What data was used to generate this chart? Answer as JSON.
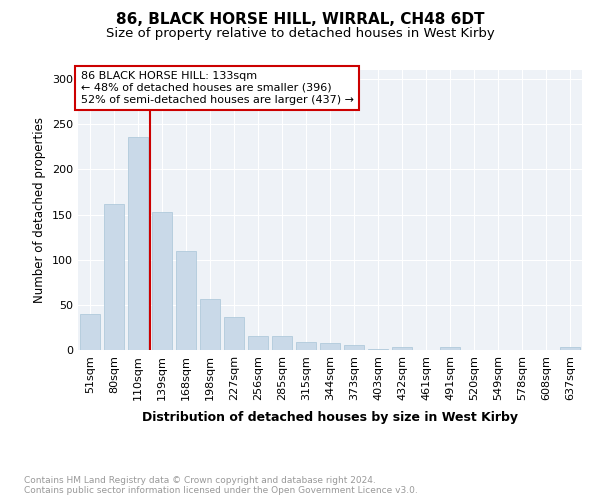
{
  "title": "86, BLACK HORSE HILL, WIRRAL, CH48 6DT",
  "subtitle": "Size of property relative to detached houses in West Kirby",
  "xlabel": "Distribution of detached houses by size in West Kirby",
  "ylabel": "Number of detached properties",
  "categories": [
    "51sqm",
    "80sqm",
    "110sqm",
    "139sqm",
    "168sqm",
    "198sqm",
    "227sqm",
    "256sqm",
    "285sqm",
    "315sqm",
    "344sqm",
    "373sqm",
    "403sqm",
    "432sqm",
    "461sqm",
    "491sqm",
    "520sqm",
    "549sqm",
    "578sqm",
    "608sqm",
    "637sqm"
  ],
  "values": [
    40,
    162,
    236,
    153,
    110,
    57,
    36,
    16,
    15,
    9,
    8,
    6,
    1,
    3,
    0,
    3,
    0,
    0,
    0,
    0,
    3
  ],
  "bar_color": "#c9d9e8",
  "bar_edge_color": "#a8c4d8",
  "vline_x": 2.5,
  "vline_color": "#cc0000",
  "annotation_line1": "86 BLACK HORSE HILL: 133sqm",
  "annotation_line2": "← 48% of detached houses are smaller (396)",
  "annotation_line3": "52% of semi-detached houses are larger (437) →",
  "annotation_box_color": "#ffffff",
  "annotation_box_edge": "#cc0000",
  "ylim": [
    0,
    310
  ],
  "yticks": [
    0,
    50,
    100,
    150,
    200,
    250,
    300
  ],
  "footer_text": "Contains HM Land Registry data © Crown copyright and database right 2024.\nContains public sector information licensed under the Open Government Licence v3.0.",
  "bg_color": "#eef2f7",
  "grid_color": "#ffffff",
  "title_fontsize": 11,
  "subtitle_fontsize": 9.5,
  "xlabel_fontsize": 9,
  "ylabel_fontsize": 8.5,
  "tick_fontsize": 8,
  "annotation_fontsize": 8,
  "footer_fontsize": 6.5
}
